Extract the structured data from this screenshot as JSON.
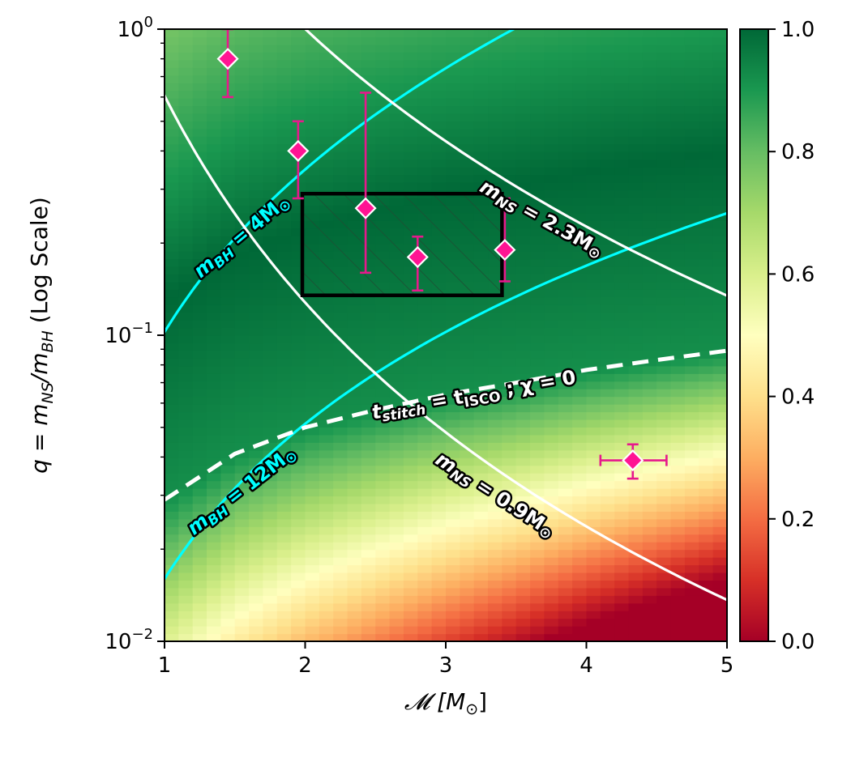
{
  "chart_data": {
    "type": "heatmap",
    "title": "",
    "xlabel": "𝓜 [M",
    "xlabel_sub": "⊙",
    "xlabel_tail": "]",
    "ylabel": "q = m",
    "ylabel_sub1": "NS",
    "ylabel_mid": "/m",
    "ylabel_sub2": "BH",
    "ylabel_tail": " (Log Scale)",
    "xlim": [
      1,
      5
    ],
    "ylim": [
      0.01,
      1
    ],
    "yscale": "log",
    "x_ticks": [
      {
        "value": 1,
        "label": "1"
      },
      {
        "value": 2,
        "label": "2"
      },
      {
        "value": 3,
        "label": "3"
      },
      {
        "value": 4,
        "label": "4"
      },
      {
        "value": 5,
        "label": "5"
      }
    ],
    "y_ticks": [
      {
        "value": 1,
        "base": "10",
        "exp": "0"
      },
      {
        "value": 0.1,
        "base": "10",
        "exp": "−1"
      },
      {
        "value": 0.01,
        "base": "10",
        "exp": "−2"
      }
    ],
    "colorbar": {
      "colormap": "RdYlGn",
      "range": [
        0,
        1
      ],
      "ticks": [
        {
          "value": 0,
          "label": "0.0"
        },
        {
          "value": 0.2,
          "label": "0.2"
        },
        {
          "value": 0.4,
          "label": "0.4"
        },
        {
          "value": 0.6,
          "label": "0.6"
        },
        {
          "value": 0.8,
          "label": "0.8"
        },
        {
          "value": 1,
          "label": "1.0"
        }
      ],
      "colors": [
        "#a50026",
        "#d73027",
        "#f46d43",
        "#fdae61",
        "#fee08b",
        "#ffffbf",
        "#d9ef8b",
        "#a6d96a",
        "#66bd63",
        "#1a9850",
        "#006837"
      ]
    },
    "curves": [
      {
        "name": "m_BH = 4 M_sun",
        "kind": "fixed_mbh",
        "value": 4,
        "color": "#00ffff",
        "style": "solid"
      },
      {
        "name": "m_BH = 12 M_sun",
        "kind": "fixed_mbh",
        "value": 12,
        "color": "#00ffff",
        "style": "solid"
      },
      {
        "name": "m_NS = 2.3 M_sun",
        "kind": "fixed_mns",
        "value": 2.3,
        "color": "#ffffff",
        "style": "solid"
      },
      {
        "name": "m_NS = 0.9 M_sun",
        "kind": "fixed_mns",
        "value": 0.9,
        "color": "#ffffff",
        "style": "solid"
      },
      {
        "name": "t_stitch = t_ISCO ; chi = 0",
        "kind": "boundary",
        "points": [
          [
            1.0,
            0.029
          ],
          [
            1.5,
            0.041
          ],
          [
            2.0,
            0.05
          ],
          [
            2.5,
            0.057
          ],
          [
            3.0,
            0.064
          ],
          [
            3.5,
            0.07
          ],
          [
            4.0,
            0.077
          ],
          [
            4.5,
            0.083
          ],
          [
            5.0,
            0.089
          ]
        ],
        "color": "#ffffff",
        "style": "dashed"
      }
    ],
    "curve_labels": [
      {
        "base": "m",
        "sub": "BH",
        "mid": " = 4M",
        "sun": "⊙",
        "color": "#00ffff",
        "x": 1.55,
        "y": 0.21,
        "angle": -40
      },
      {
        "base": "m",
        "sub": "BH",
        "mid": " = 12M",
        "sun": "⊙",
        "color": "#00ffff",
        "x": 1.55,
        "y": 0.031,
        "angle": -38
      },
      {
        "base": "m",
        "sub": "NS",
        "mid": " = 2.3M",
        "sun": "⊙",
        "color": "#ffffff",
        "x": 3.68,
        "y": 0.24,
        "angle": 29
      },
      {
        "base": "m",
        "sub": "NS",
        "mid": " = 0.9M",
        "sun": "⊙",
        "color": "#ffffff",
        "x": 3.35,
        "y": 0.03,
        "angle": 33
      },
      {
        "base": "t",
        "sub": "stitch",
        "mid": " = t",
        "sub2": "ISCO",
        "tail": " ; χ = 0",
        "color": "#ffffff",
        "x": 3.2,
        "y": 0.0635,
        "angle": -10
      }
    ],
    "region": {
      "x": [
        1.98,
        3.4
      ],
      "y": [
        0.135,
        0.29
      ],
      "hatch": true
    },
    "points": [
      {
        "x": 1.45,
        "y": 0.8,
        "y_err": [
          0.6,
          1.0
        ]
      },
      {
        "x": 1.95,
        "y": 0.4,
        "y_err": [
          0.28,
          0.5
        ]
      },
      {
        "x": 2.43,
        "y": 0.26,
        "y_err": [
          0.16,
          0.62
        ]
      },
      {
        "x": 2.8,
        "y": 0.18,
        "y_err": [
          0.14,
          0.21
        ]
      },
      {
        "x": 3.42,
        "y": 0.19,
        "y_err": [
          0.15,
          0.28
        ]
      },
      {
        "x": 4.33,
        "y": 0.039,
        "y_err": [
          0.034,
          0.044
        ],
        "x_err": [
          4.1,
          4.57
        ]
      }
    ],
    "point_style": {
      "marker": "diamond",
      "fill": "#ff1493",
      "edge": "#ffffff",
      "errorbar": "#e6198c"
    }
  }
}
